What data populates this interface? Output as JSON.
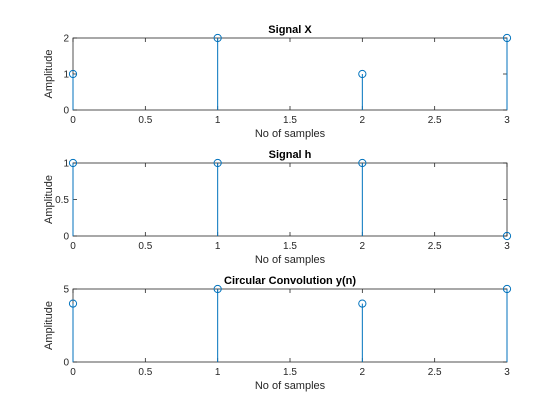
{
  "chart_data": [
    {
      "type": "stem",
      "title": "Signal X",
      "xlabel": "No of samples",
      "ylabel": "Amplitude",
      "xlim": [
        0,
        3
      ],
      "ylim": [
        0,
        2
      ],
      "xticks": [
        "0",
        "0.5",
        "1",
        "1.5",
        "2",
        "2.5",
        "3"
      ],
      "yticks": [
        "0",
        "1",
        "2"
      ],
      "grid": false,
      "series": [
        {
          "x": [
            0,
            1,
            2,
            3
          ],
          "values": [
            1,
            2,
            1,
            2
          ],
          "color": "#0072BD"
        }
      ]
    },
    {
      "type": "stem",
      "title": "Signal h",
      "xlabel": "No of samples",
      "ylabel": "Amplitude",
      "xlim": [
        0,
        3
      ],
      "ylim": [
        0,
        1
      ],
      "xticks": [
        "0",
        "0.5",
        "1",
        "1.5",
        "2",
        "2.5",
        "3"
      ],
      "yticks": [
        "0",
        "0.5",
        "1"
      ],
      "grid": false,
      "series": [
        {
          "x": [
            0,
            1,
            2,
            3
          ],
          "values": [
            1,
            1,
            1,
            0
          ],
          "color": "#0072BD"
        }
      ]
    },
    {
      "type": "stem",
      "title": "Circular Convolution y(n)",
      "xlabel": "No of samples",
      "ylabel": "Amplitude",
      "xlim": [
        0,
        3
      ],
      "ylim": [
        0,
        5
      ],
      "xticks": [
        "0",
        "0.5",
        "1",
        "1.5",
        "2",
        "2.5",
        "3"
      ],
      "yticks": [
        "0",
        "5"
      ],
      "grid": false,
      "series": [
        {
          "x": [
            0,
            1,
            2,
            3
          ],
          "values": [
            4,
            5,
            4,
            5
          ],
          "color": "#0072BD"
        }
      ]
    }
  ]
}
